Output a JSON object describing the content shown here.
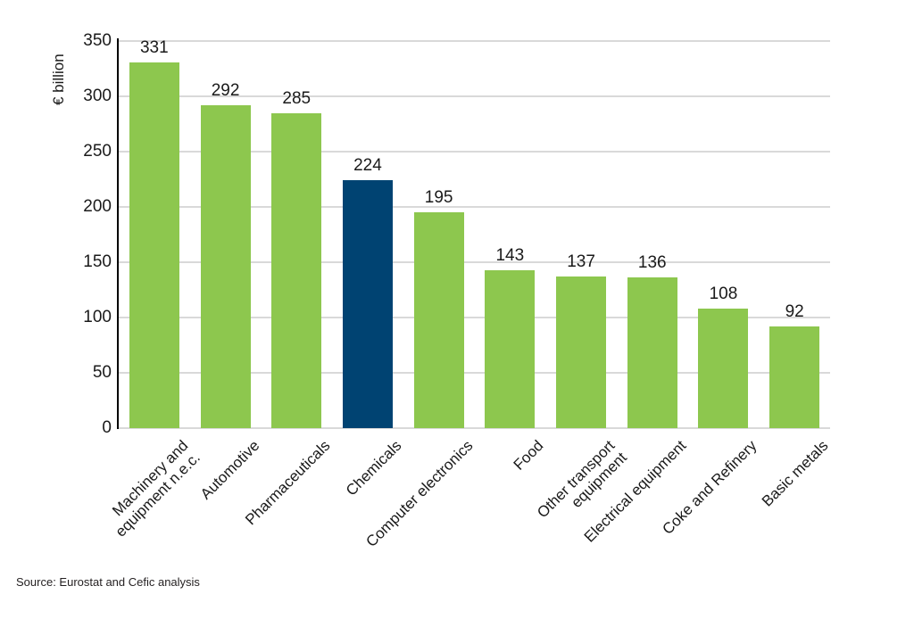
{
  "chart_data": {
    "type": "bar",
    "title": "",
    "xlabel": "",
    "ylabel": "€ billion",
    "categories": [
      "Machinery and\nequipment n.e.c.",
      "Automotive",
      "Pharmaceuticals",
      "Chemicals",
      "Computer electronics",
      "Food",
      "Other transport\nequipment",
      "Electrical equipment",
      "Coke and Refinery",
      "Basic metals"
    ],
    "values": [
      331,
      292,
      285,
      224,
      195,
      143,
      137,
      136,
      108,
      92
    ],
    "ylim": [
      0,
      350
    ],
    "yticks": [
      0,
      50,
      100,
      150,
      200,
      250,
      300,
      350
    ],
    "grid": true,
    "legend": "none",
    "highlight_category": "Chemicals",
    "highlight_index": 3,
    "colors": {
      "bar": "#8dc74e",
      "highlight": "#004372",
      "gridline": "#d9d9d9",
      "axis": "#000000",
      "text": "#1a1a1a"
    }
  },
  "source_note": "Source: Eurostat and Cefic analysis"
}
